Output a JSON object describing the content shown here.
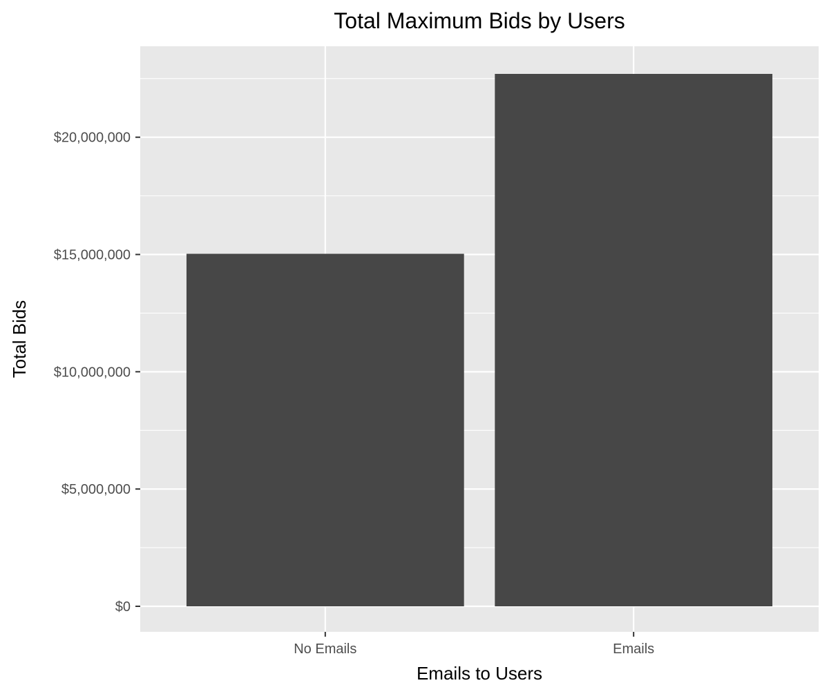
{
  "chart_data": {
    "type": "bar",
    "title": "Total Maximum Bids by Users",
    "xlabel": "Emails to Users",
    "ylabel": "Total Bids",
    "categories": [
      "No Emails",
      "Emails"
    ],
    "values": [
      15030000,
      22700000
    ],
    "ylim": [
      0,
      23850000
    ],
    "y_ticks": [
      0,
      5000000,
      10000000,
      15000000,
      20000000
    ],
    "y_tick_labels": [
      "$0",
      "$5,000,000",
      "$10,000,000",
      "$15,000,000",
      "$20,000,000"
    ],
    "grid": true,
    "legend": "none",
    "colors": {
      "bar": "#474747",
      "panel_background": "#e8e8e8",
      "grid": "#ffffff",
      "text": "#000000",
      "tick_text": "#4d4d4d"
    }
  }
}
